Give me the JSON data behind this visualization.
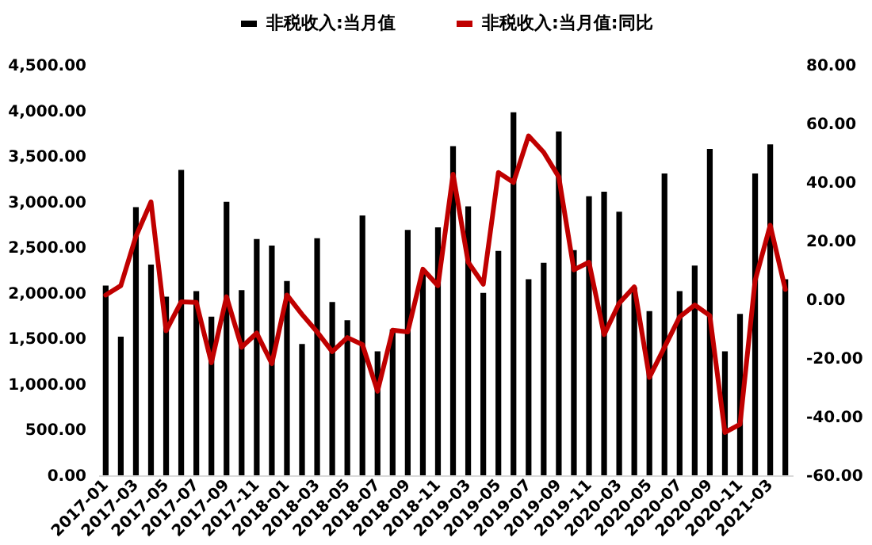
{
  "chart_data": {
    "type": "bar",
    "legend": "top",
    "categories": [
      "2017-01",
      null,
      "2017-03",
      null,
      "2017-05",
      null,
      "2017-07",
      null,
      "2017-09",
      null,
      "2017-11",
      null,
      "2018-01",
      null,
      "2018-03",
      null,
      "2018-05",
      null,
      "2018-07",
      null,
      "2018-09",
      null,
      "2018-11",
      null,
      "2019-03",
      null,
      "2019-05",
      null,
      "2019-07",
      null,
      "2019-09",
      null,
      "2019-11",
      null,
      "2020-03",
      null,
      "2020-05",
      null,
      "2020-07",
      null,
      "2020-09",
      null,
      "2020-11",
      null,
      "2021-03",
      null
    ],
    "series": [
      {
        "name": "非税收入:当月值",
        "color": "#000000",
        "values": [
          2080,
          1520,
          2940,
          2310,
          1960,
          3350,
          2020,
          1740,
          3000,
          2030,
          2590,
          2520,
          2130,
          1440,
          2600,
          1900,
          1700,
          2850,
          1360,
          1600,
          2690,
          2220,
          2720,
          3610,
          2950,
          2000,
          2460,
          3980,
          2150,
          2330,
          3770,
          2470,
          3060,
          3110,
          2890,
          2060,
          1800,
          3310,
          2020,
          2300,
          3580,
          1360,
          1770,
          3310,
          3630,
          2150
        ]
      },
      {
        "name": "非税收入:当月值:同比",
        "type": "line",
        "axis": "y2",
        "color": "#c00000",
        "values": [
          1.5,
          4.7,
          21.5,
          33.3,
          -10.7,
          -0.8,
          -1.0,
          -21.6,
          0.9,
          -16.3,
          -11.5,
          -21.9,
          1.5,
          -5.1,
          -11.1,
          -17.8,
          -13.0,
          -15.4,
          -31.3,
          -10.5,
          -11.1,
          10.3,
          4.7,
          42.7,
          12.7,
          5.2,
          43.3,
          39.9,
          55.8,
          50.2,
          41.8,
          10.1,
          12.7,
          -12.0,
          -1.3,
          4.3,
          -26.6,
          -16.3,
          -6.0,
          -1.9,
          -5.5,
          -45.4,
          -42.6,
          6.5,
          25.3,
          3.4
        ]
      }
    ],
    "ylim": [
      0,
      4500
    ],
    "yticks": [
      {
        "value": 0,
        "label": "0.00"
      },
      {
        "value": 500,
        "label": "500.00"
      },
      {
        "value": 1000,
        "label": "1,000.00"
      },
      {
        "value": 1500,
        "label": "1,500.00"
      },
      {
        "value": 2000,
        "label": "2,000.00"
      },
      {
        "value": 2500,
        "label": "2,500.00"
      },
      {
        "value": 3000,
        "label": "3,000.00"
      },
      {
        "value": 3500,
        "label": "3,500.00"
      },
      {
        "value": 4000,
        "label": "4,000.00"
      },
      {
        "value": 4500,
        "label": "4,500.00"
      }
    ],
    "y2lim": [
      -60,
      80
    ],
    "y2ticks": [
      {
        "value": -60,
        "label": "-60.00"
      },
      {
        "value": -40,
        "label": "-40.00"
      },
      {
        "value": -20,
        "label": "-20.00"
      },
      {
        "value": 0,
        "label": "0.00"
      },
      {
        "value": 20,
        "label": "20.00"
      },
      {
        "value": 40,
        "label": "40.00"
      },
      {
        "value": 60,
        "label": "60.00"
      },
      {
        "value": 80,
        "label": "80.00"
      }
    ]
  }
}
